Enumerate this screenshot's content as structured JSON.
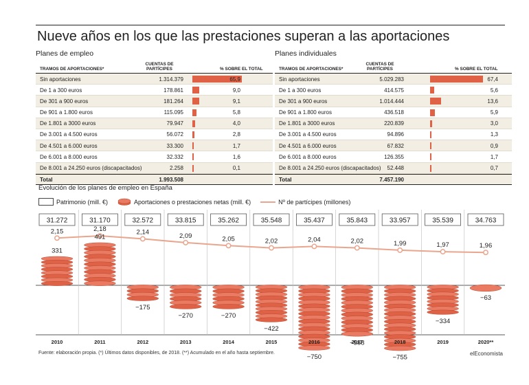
{
  "title": "Nueve años en los que las prestaciones superan a las aportaciones",
  "colors": {
    "accent": "#e06246",
    "line": "#e9a58d",
    "shade": "#f2eee3"
  },
  "tables": {
    "left": {
      "title": "Planes de empleo",
      "header": {
        "tramos": "TRAMOS DE APORTACIONES*",
        "cuentas": "CUENTAS DE PARTÍCIPES",
        "pct": "% SOBRE EL TOTAL"
      },
      "rows": [
        {
          "label": "Sin aportaciones",
          "count": "1.314.379",
          "pct": "65,9",
          "value": 65.9
        },
        {
          "label": "De 1 a 300 euros",
          "count": "178.861",
          "pct": "9,0",
          "value": 9.0
        },
        {
          "label": "De 301 a 900 euros",
          "count": "181.264",
          "pct": "9,1",
          "value": 9.1
        },
        {
          "label": "De 901 a 1.800 euros",
          "count": "115.095",
          "pct": "5,8",
          "value": 5.8
        },
        {
          "label": "De 1.801 a 3000 euros",
          "count": "79.947",
          "pct": "4,0",
          "value": 4.0
        },
        {
          "label": "De 3.001 a 4.500 euros",
          "count": "56.072",
          "pct": "2,8",
          "value": 2.8
        },
        {
          "label": "De 4.501 a 6.000 euros",
          "count": "33.300",
          "pct": "1,7",
          "value": 1.7
        },
        {
          "label": "De 6.001 a 8.000 euros",
          "count": "32.332",
          "pct": "1,6",
          "value": 1.6
        },
        {
          "label": "De 8.001 a 24.250 euros (discapacitados)",
          "count": "2.258",
          "pct": "0,1",
          "value": 0.1
        }
      ],
      "total": {
        "label": "Total",
        "count": "1.993.508"
      }
    },
    "right": {
      "title": "Planes individuales",
      "header": {
        "tramos": "TRAMOS DE APORTACIONES*",
        "cuentas": "CUENTAS DE PARTÍCIPES",
        "pct": "% SOBRE EL TOTAL"
      },
      "rows": [
        {
          "label": "Sin aportaciones",
          "count": "5.029.283",
          "pct": "67,4",
          "value": 67.4
        },
        {
          "label": "De 1 a 300 euros",
          "count": "414.575",
          "pct": "5,6",
          "value": 5.6
        },
        {
          "label": "De 301 a 900 euros",
          "count": "1.014.444",
          "pct": "13,6",
          "value": 13.6
        },
        {
          "label": "De 901 a 1.800 euros",
          "count": "436.518",
          "pct": "5,9",
          "value": 5.9
        },
        {
          "label": "De 1.801 a 3000 euros",
          "count": "220.839",
          "pct": "3,0",
          "value": 3.0
        },
        {
          "label": "De 3.001 a 4.500 euros",
          "count": "94.896",
          "pct": "1,3",
          "value": 1.3
        },
        {
          "label": "De 4.501 a 6.000 euros",
          "count": "67.832",
          "pct": "0,9",
          "value": 0.9
        },
        {
          "label": "De 6.001 a 8.000 euros",
          "count": "126.355",
          "pct": "1,7",
          "value": 1.7
        },
        {
          "label": "De 8.001 a 24.250 euros (discapacitados)",
          "count": "52.448",
          "pct": "0,7",
          "value": 0.7
        }
      ],
      "total": {
        "label": "Total",
        "count": "7.457.190"
      }
    }
  },
  "evolution": {
    "title": "Evolución de los planes de empleo en España",
    "legend": {
      "patrimonio": "Patrimonio (mill. €)",
      "aportaciones": "Aportaciones o prestaciones netas (mill. €)",
      "participes": "Nº de partícipes (millones)"
    }
  },
  "chart_data": {
    "type": "bar",
    "title": "Evolución de los planes de empleo en España",
    "categories": [
      "2010",
      "2011",
      "2012",
      "2013",
      "2014",
      "2015",
      "2016",
      "2017",
      "2018",
      "2019",
      "2020**"
    ],
    "series": [
      {
        "name": "Patrimonio (mill. €)",
        "labels": [
          "31.272",
          "31.170",
          "32.572",
          "33.815",
          "35.262",
          "35.548",
          "35.437",
          "35.843",
          "33.957",
          "35.539",
          "34.763"
        ]
      },
      {
        "name": "Aportaciones o prestaciones netas (mill. €)",
        "values": [
          331,
          491,
          -175,
          -270,
          -270,
          -422,
          -750,
          -588,
          -755,
          -334,
          -63
        ],
        "labels": [
          "331",
          "491",
          "−175",
          "−270",
          "−270",
          "−422",
          "−750",
          "−588",
          "−755",
          "−334",
          "−63"
        ]
      },
      {
        "name": "Nº de partícipes (millones)",
        "values": [
          2.15,
          2.18,
          2.14,
          2.09,
          2.05,
          2.02,
          2.04,
          2.02,
          1.99,
          1.97,
          1.96
        ],
        "labels": [
          "2,15",
          "2,18",
          "2,14",
          "2,09",
          "2,05",
          "2,02",
          "2,04",
          "2,02",
          "1,99",
          "1,97",
          "1,96"
        ]
      }
    ]
  },
  "footer": "Fuente: elaboración propia. (*) Últimos datos disponibles, de 2018. (**) Acumulado en el año hasta septiembre.",
  "brand": "elEconomista"
}
